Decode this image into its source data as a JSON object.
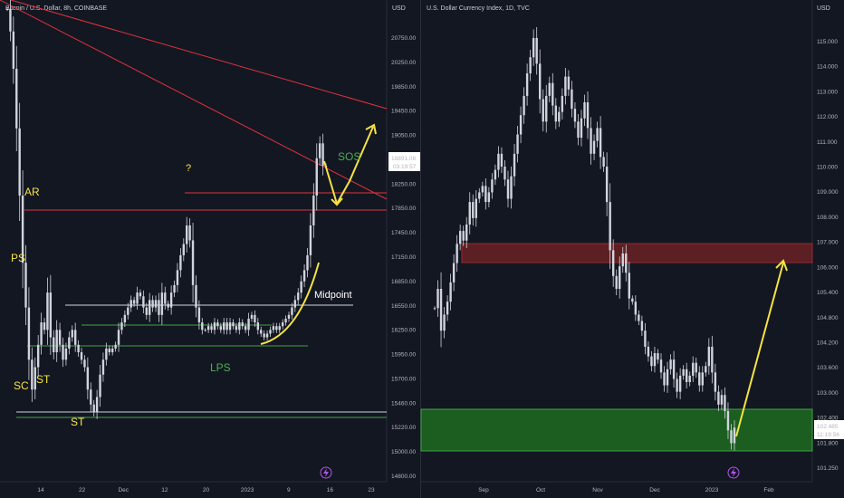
{
  "colors": {
    "background": "#131722",
    "candle": "#d1d4dc",
    "resistance": "#e0333d",
    "yellow": "#f5e342",
    "green_text": "#4caf50",
    "green_zone": "#1b5e20",
    "red_zone": "#5c1f24",
    "white_line": "#d1d4dc",
    "green_line": "#43a047",
    "lightning": "#b056e8"
  },
  "left_chart": {
    "title": "Bitcoin / U.S. Dollar, 8h, COINBASE",
    "currency": "USD",
    "price_label": "18891.08",
    "countdown": "03:19:57",
    "chart_data": {
      "type": "line",
      "x_tick_labels": [
        "14",
        "22",
        "Dec",
        "12",
        "20",
        "2023",
        "9",
        "16",
        "23"
      ],
      "y_tick_labels": [
        "20750.00",
        "20250.00",
        "19850.00",
        "19450.00",
        "19050.00",
        "18650.00",
        "18250.00",
        "17850.00",
        "17450.00",
        "17150.00",
        "16850.00",
        "16550.00",
        "16250.00",
        "15950.00",
        "15700.00",
        "15460.00",
        "15220.00",
        "15000.00",
        "14800.00"
      ],
      "ylim": [
        14750,
        21000
      ],
      "series": [
        {
          "values": [
            21000,
            20700,
            20200,
            19400,
            18500,
            17600,
            17000,
            16300,
            15900,
            16200,
            16500,
            16800,
            16700,
            17200,
            16600,
            16400,
            16700,
            16500,
            16300,
            16450,
            16600,
            16700,
            16500,
            16400,
            16300,
            16200,
            15900,
            15700,
            15600,
            15800,
            16100,
            16300,
            16450,
            16400,
            16450,
            16500,
            16700,
            16800,
            16900,
            17000,
            17100,
            17050,
            17200,
            17150,
            17000,
            16900,
            17100,
            17000,
            17100,
            16900,
            17200,
            17050,
            17000,
            17200,
            17300,
            17500,
            17700,
            17850,
            18100,
            17900,
            17300,
            17000,
            16800,
            16700,
            16700,
            16750,
            16700,
            16800,
            16750,
            16700,
            16800,
            16700,
            16800,
            16750,
            16700,
            16800,
            16750,
            16700,
            16850,
            16900,
            16800,
            16700,
            16650,
            16600,
            16650,
            16700,
            16750,
            16700,
            16750,
            16800,
            16850,
            16900,
            17000,
            17100,
            17200,
            17350,
            17500,
            17700,
            18100,
            18500,
            19000,
            19200,
            18900,
            18891
          ]
        }
      ]
    },
    "annotations": {
      "ar": "AR",
      "ps": "PS",
      "sc": "SC",
      "st1": "ST",
      "st2": "ST",
      "question": "?",
      "sos": "SOS",
      "midpoint": "Midpoint",
      "lps": "LPS"
    }
  },
  "right_chart": {
    "title": "U.S. Dollar Currency Index, 1D, TVC",
    "currency": "USD",
    "price_label": "102.485",
    "countdown": "11:19:56",
    "chart_data": {
      "type": "line",
      "x_tick_labels": [
        "Sep",
        "Oct",
        "Nov",
        "Dec",
        "2023",
        "Feb"
      ],
      "y_tick_labels": [
        "115.000",
        "114.000",
        "113.000",
        "112.000",
        "111.000",
        "110.000",
        "109.000",
        "108.000",
        "107.000",
        "106.000",
        "105.400",
        "104.800",
        "104.200",
        "103.600",
        "103.000",
        "102.400",
        "101.800",
        "101.250"
      ],
      "ylim": [
        101.0,
        115.5
      ],
      "series": [
        {
          "values": [
            106.2,
            106.8,
            105.5,
            106.0,
            106.4,
            107.0,
            107.6,
            108.2,
            108.6,
            108.3,
            108.8,
            109.5,
            109.0,
            109.6,
            109.8,
            110.0,
            109.5,
            109.8,
            110.2,
            110.5,
            111.0,
            110.6,
            110.2,
            109.6,
            110.3,
            111.0,
            111.6,
            112.2,
            112.8,
            113.5,
            114.0,
            114.6,
            113.8,
            112.7,
            112.0,
            112.8,
            113.2,
            112.5,
            112.0,
            112.3,
            112.8,
            113.4,
            113.0,
            112.4,
            112.0,
            111.5,
            112.1,
            112.6,
            111.8,
            111.0,
            111.4,
            111.8,
            110.9,
            110.6,
            109.5,
            108.0,
            107.2,
            106.8,
            107.5,
            107.9,
            107.3,
            106.5,
            106.4,
            106.0,
            105.8,
            105.5,
            105.0,
            104.7,
            104.4,
            104.8,
            104.6,
            104.2,
            103.8,
            104.3,
            104.6,
            104.0,
            103.6,
            104.1,
            104.3,
            103.9,
            104.1,
            104.5,
            104.2,
            103.8,
            104.2,
            104.4,
            105.0,
            104.2,
            103.6,
            103.2,
            103.5,
            103.0,
            102.4,
            102.0,
            102.485
          ]
        }
      ]
    }
  }
}
